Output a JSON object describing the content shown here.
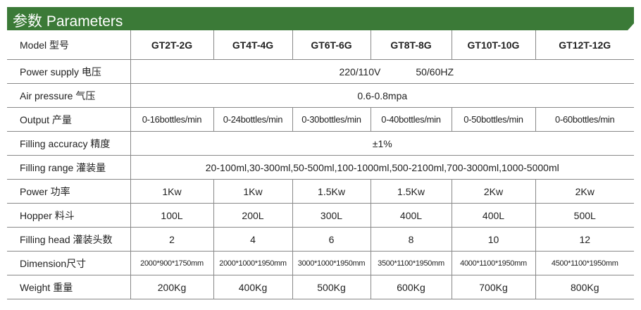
{
  "title": "参数 Parameters",
  "colors": {
    "header": "#3b7a37"
  },
  "models": [
    "GT2T-2G",
    "GT4T-4G",
    "GT6T-6G",
    "GT8T-8G",
    "GT10T-10G",
    "GT12T-12G"
  ],
  "labels": {
    "model": "Model 型号",
    "power_supply": "Power supply 电压",
    "air": "Air pressure 气压",
    "output": "Output 产量",
    "accuracy": "Filling accuracy 精度",
    "range": "Filling range 灌装量",
    "power": "Power 功率",
    "hopper": "Hopper 料斗",
    "head": "Filling head 灌装头数",
    "dimension": "Dimension尺寸",
    "weight": "Weight 重量"
  },
  "power_supply": {
    "voltage": "220/110V",
    "frequency": "50/60HZ"
  },
  "air": "0.6-0.8mpa",
  "accuracy": "±1%",
  "range": "20-100ml,30-300ml,50-500ml,100-1000ml,500-2100ml,700-3000ml,1000-5000ml",
  "output": [
    "0-16bottles/min",
    "0-24bottles/min",
    "0-30bottles/min",
    "0-40bottles/min",
    "0-50bottles/min",
    "0-60bottles/min"
  ],
  "power": [
    "1Kw",
    "1Kw",
    "1.5Kw",
    "1.5Kw",
    "2Kw",
    "2Kw"
  ],
  "hopper": [
    "100L",
    "200L",
    "300L",
    "400L",
    "400L",
    "500L"
  ],
  "head": [
    "2",
    "4",
    "6",
    "8",
    "10",
    "12"
  ],
  "dimension": [
    "2000*900*1750mm",
    "2000*1000*1950mm",
    "3000*1000*1950mm",
    "3500*1100*1950mm",
    "4000*1100*1950mm",
    "4500*1100*1950mm"
  ],
  "weight": [
    "200Kg",
    "400Kg",
    "500Kg",
    "600Kg",
    "700Kg",
    "800Kg"
  ]
}
